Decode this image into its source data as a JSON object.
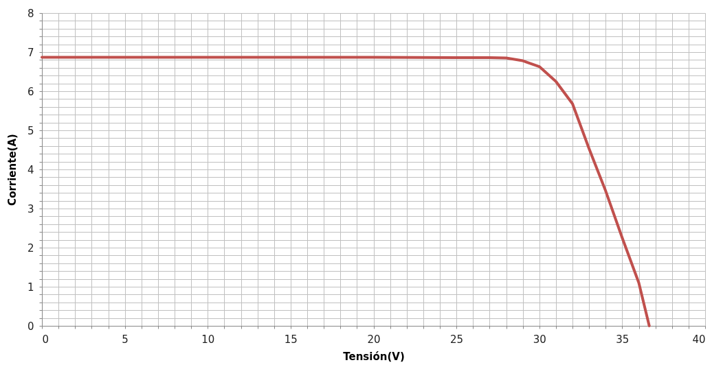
{
  "chart_data": {
    "type": "line",
    "xlabel": "Tensión(V)",
    "ylabel": "Corriente(A)",
    "x": [
      0,
      10,
      20,
      25,
      27,
      28,
      29,
      30,
      31,
      32,
      33,
      34,
      35,
      36,
      36.63
    ],
    "series": [
      {
        "color": "#c0504d",
        "values": [
          6.87,
          6.87,
          6.87,
          6.86,
          6.86,
          6.85,
          6.78,
          6.63,
          6.25,
          5.68,
          4.53,
          3.45,
          2.25,
          1.1,
          0
        ]
      }
    ],
    "xlim": [
      0,
      40
    ],
    "ylim": [
      0,
      8
    ],
    "xticks": [
      0,
      {
        "value": 1,
        "label": null
      },
      {
        "value": 2,
        "label": null
      },
      {
        "value": 3,
        "label": null
      },
      {
        "value": 4,
        "label": null
      },
      5,
      {
        "value": 6,
        "label": null
      },
      {
        "value": 7,
        "label": null
      },
      {
        "value": 8,
        "label": null
      },
      {
        "value": 9,
        "label": null
      },
      10,
      {
        "value": 11,
        "label": null
      },
      {
        "value": 12,
        "label": null
      },
      {
        "value": 13,
        "label": null
      },
      {
        "value": 14,
        "label": null
      },
      15,
      {
        "value": 16,
        "label": null
      },
      {
        "value": 17,
        "label": null
      },
      {
        "value": 18,
        "label": null
      },
      {
        "value": 19,
        "label": null
      },
      20,
      {
        "value": 21,
        "label": null
      },
      {
        "value": 22,
        "label": null
      },
      {
        "value": 23,
        "label": null
      },
      {
        "value": 24,
        "label": null
      },
      25,
      {
        "value": 26,
        "label": null
      },
      {
        "value": 27,
        "label": null
      },
      {
        "value": 28,
        "label": null
      },
      {
        "value": 29,
        "label": null
      },
      30,
      {
        "value": 31,
        "label": null
      },
      {
        "value": 32,
        "label": null
      },
      {
        "value": 33,
        "label": null
      },
      {
        "value": 34,
        "label": null
      },
      35,
      {
        "value": 36,
        "label": null
      },
      {
        "value": 37,
        "label": null
      },
      {
        "value": 38,
        "label": null
      },
      {
        "value": 39,
        "label": null
      },
      40
    ],
    "yticks": [
      0,
      {
        "value": 0.2,
        "label": null
      },
      {
        "value": 0.4,
        "label": null
      },
      {
        "value": 0.6,
        "label": null
      },
      {
        "value": 0.8,
        "label": null
      },
      1,
      {
        "value": 1.2,
        "label": null
      },
      {
        "value": 1.4,
        "label": null
      },
      {
        "value": 1.6,
        "label": null
      },
      {
        "value": 1.8,
        "label": null
      },
      2,
      {
        "value": 2.2,
        "label": null
      },
      {
        "value": 2.4,
        "label": null
      },
      {
        "value": 2.6,
        "label": null
      },
      {
        "value": 2.8,
        "label": null
      },
      3,
      {
        "value": 3.2,
        "label": null
      },
      {
        "value": 3.4,
        "label": null
      },
      {
        "value": 3.6,
        "label": null
      },
      {
        "value": 3.8,
        "label": null
      },
      4,
      {
        "value": 4.2,
        "label": null
      },
      {
        "value": 4.4,
        "label": null
      },
      {
        "value": 4.6,
        "label": null
      },
      {
        "value": 4.8,
        "label": null
      },
      5,
      {
        "value": 5.2,
        "label": null
      },
      {
        "value": 5.4,
        "label": null
      },
      {
        "value": 5.6,
        "label": null
      },
      {
        "value": 5.8,
        "label": null
      },
      6,
      {
        "value": 6.2,
        "label": null
      },
      {
        "value": 6.4,
        "label": null
      },
      {
        "value": 6.6,
        "label": null
      },
      {
        "value": 6.8,
        "label": null
      },
      7,
      {
        "value": 7.2,
        "label": null
      },
      {
        "value": 7.4,
        "label": null
      },
      {
        "value": 7.6,
        "label": null
      },
      {
        "value": 7.8,
        "label": null
      },
      8
    ],
    "grid": true,
    "marker": "none",
    "line_style": "solid"
  }
}
